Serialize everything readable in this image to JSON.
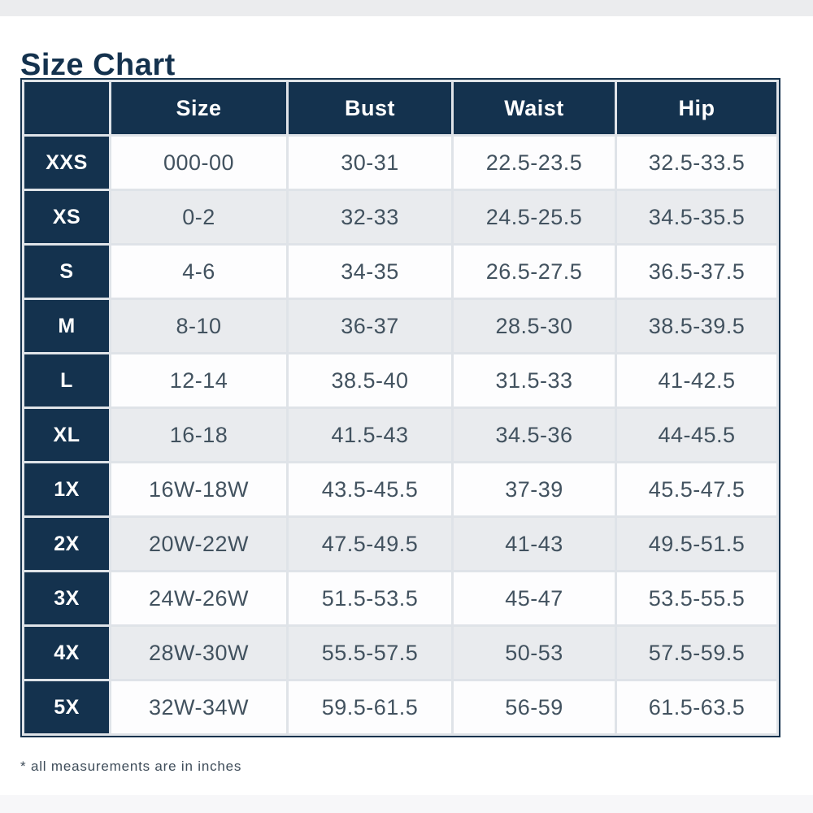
{
  "title": "Size Chart",
  "footnote": "* all measurements are in inches",
  "colors": {
    "navy": "#14324e",
    "row_white": "#fdfdfe",
    "row_gray": "#e9ebee",
    "grid_gap": "#dfe3e8",
    "data_text": "#42525f",
    "top_strip": "#ebecee",
    "bottom_strip": "#f7f7f9"
  },
  "table": {
    "columns": [
      "",
      "Size",
      "Bust",
      "Waist",
      "Hip"
    ],
    "rows": [
      [
        "XXS",
        "000-00",
        "30-31",
        "22.5-23.5",
        "32.5-33.5"
      ],
      [
        "XS",
        "0-2",
        "32-33",
        "24.5-25.5",
        "34.5-35.5"
      ],
      [
        "S",
        "4-6",
        "34-35",
        "26.5-27.5",
        "36.5-37.5"
      ],
      [
        "M",
        "8-10",
        "36-37",
        "28.5-30",
        "38.5-39.5"
      ],
      [
        "L",
        "12-14",
        "38.5-40",
        "31.5-33",
        "41-42.5"
      ],
      [
        "XL",
        "16-18",
        "41.5-43",
        "34.5-36",
        "44-45.5"
      ],
      [
        "1X",
        "16W-18W",
        "43.5-45.5",
        "37-39",
        "45.5-47.5"
      ],
      [
        "2X",
        "20W-22W",
        "47.5-49.5",
        "41-43",
        "49.5-51.5"
      ],
      [
        "3X",
        "24W-26W",
        "51.5-53.5",
        "45-47",
        "53.5-55.5"
      ],
      [
        "4X",
        "28W-30W",
        "55.5-57.5",
        "50-53",
        "57.5-59.5"
      ],
      [
        "5X",
        "32W-34W",
        "59.5-61.5",
        "56-59",
        "61.5-63.5"
      ]
    ]
  }
}
